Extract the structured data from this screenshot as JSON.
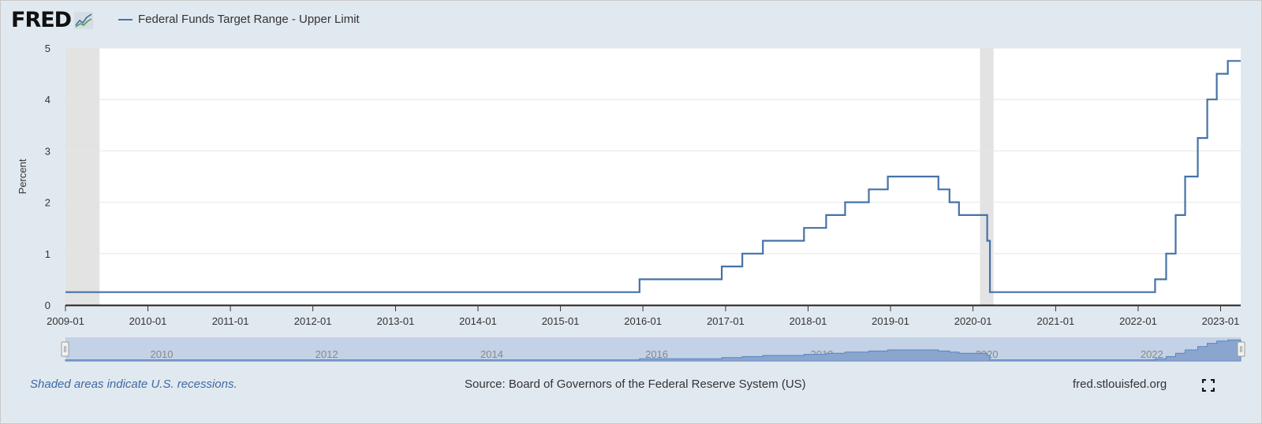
{
  "logo": {
    "text": "FRED"
  },
  "legend": {
    "label": "Federal Funds Target Range - Upper Limit",
    "color": "#4572a7"
  },
  "footer": {
    "note": "Shaded areas indicate U.S. recessions.",
    "source": "Source: Board of Governors of the Federal Reserve System (US)",
    "url": "fred.stlouisfed.org"
  },
  "chart_data": {
    "type": "line",
    "title": "",
    "xlabel": "",
    "ylabel": "Percent",
    "ylim": [
      0,
      5
    ],
    "yticks": [
      "0",
      "1",
      "2",
      "3",
      "4",
      "5"
    ],
    "xticks": [
      "2009-01",
      "2010-01",
      "2011-01",
      "2012-01",
      "2013-01",
      "2014-01",
      "2015-01",
      "2016-01",
      "2017-01",
      "2018-01",
      "2019-01",
      "2020-01",
      "2021-01",
      "2022-01",
      "2023-01"
    ],
    "xrange": [
      "2009-01-01",
      "2023-03-31"
    ],
    "grid": true,
    "line_color": "#4572a7",
    "recessions": [
      [
        "2009-01-01",
        "2009-06-01"
      ],
      [
        "2020-02-01",
        "2020-04-01"
      ]
    ],
    "series": [
      {
        "name": "Federal Funds Target Range - Upper Limit",
        "step": true,
        "points": [
          [
            "2009-01-01",
            0.25
          ],
          [
            "2015-12-17",
            0.5
          ],
          [
            "2016-12-15",
            0.75
          ],
          [
            "2017-03-16",
            1.0
          ],
          [
            "2017-06-15",
            1.25
          ],
          [
            "2017-12-14",
            1.5
          ],
          [
            "2018-03-22",
            1.75
          ],
          [
            "2018-06-14",
            2.0
          ],
          [
            "2018-09-27",
            2.25
          ],
          [
            "2018-12-20",
            2.5
          ],
          [
            "2019-08-01",
            2.25
          ],
          [
            "2019-09-19",
            2.0
          ],
          [
            "2019-10-31",
            1.75
          ],
          [
            "2020-03-04",
            1.25
          ],
          [
            "2020-03-16",
            0.25
          ],
          [
            "2022-03-17",
            0.5
          ],
          [
            "2022-05-05",
            1.0
          ],
          [
            "2022-06-16",
            1.75
          ],
          [
            "2022-07-28",
            2.5
          ],
          [
            "2022-09-22",
            3.25
          ],
          [
            "2022-11-03",
            4.0
          ],
          [
            "2022-12-15",
            4.5
          ],
          [
            "2023-02-02",
            4.75
          ],
          [
            "2023-03-31",
            4.75
          ]
        ]
      }
    ],
    "navigator_labels": [
      "2010",
      "2012",
      "2014",
      "2016",
      "2018",
      "2020",
      "2022"
    ]
  }
}
